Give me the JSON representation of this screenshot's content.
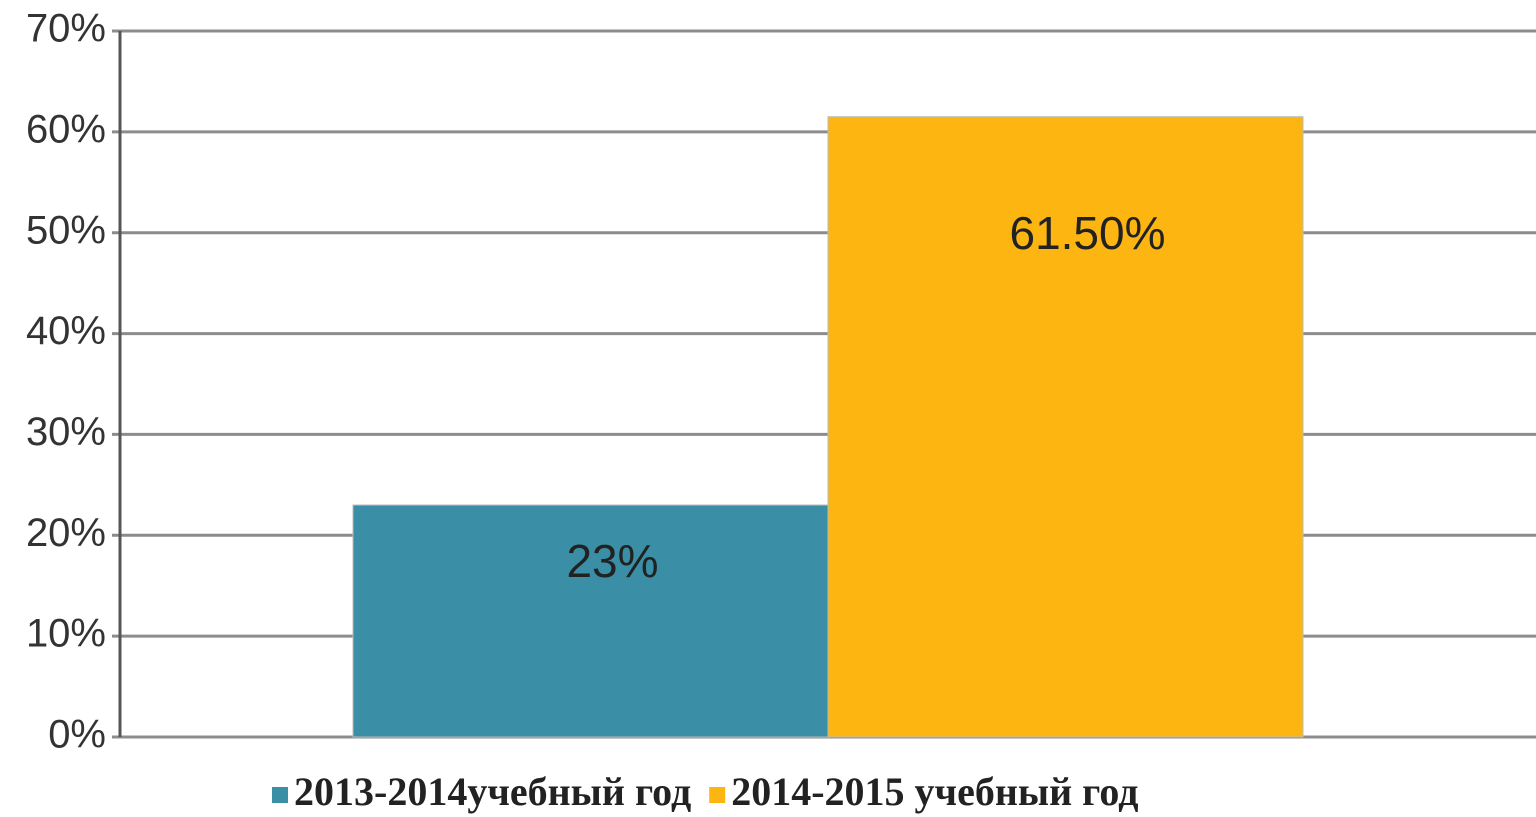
{
  "chart_data": {
    "type": "bar",
    "categories": [
      null
    ],
    "series": [
      {
        "name": "2013-2014учебный год",
        "color": "#3a8fa6",
        "values": [
          23
        ],
        "value_labels": [
          "23%"
        ]
      },
      {
        "name": "2014-2015 учебный год",
        "color": "#fcb511",
        "values": [
          61.5
        ],
        "value_labels": [
          "61.50%"
        ]
      }
    ],
    "ylim": [
      0,
      70
    ],
    "yticks": [
      {
        "value": 0,
        "label": "0%"
      },
      {
        "value": 10,
        "label": "10%"
      },
      {
        "value": 20,
        "label": "20%"
      },
      {
        "value": 30,
        "label": "30%"
      },
      {
        "value": 40,
        "label": "40%"
      },
      {
        "value": 50,
        "label": "50%"
      },
      {
        "value": 60,
        "label": "60%"
      },
      {
        "value": 70,
        "label": "70%"
      }
    ],
    "grid": true,
    "legend": "bottom"
  }
}
